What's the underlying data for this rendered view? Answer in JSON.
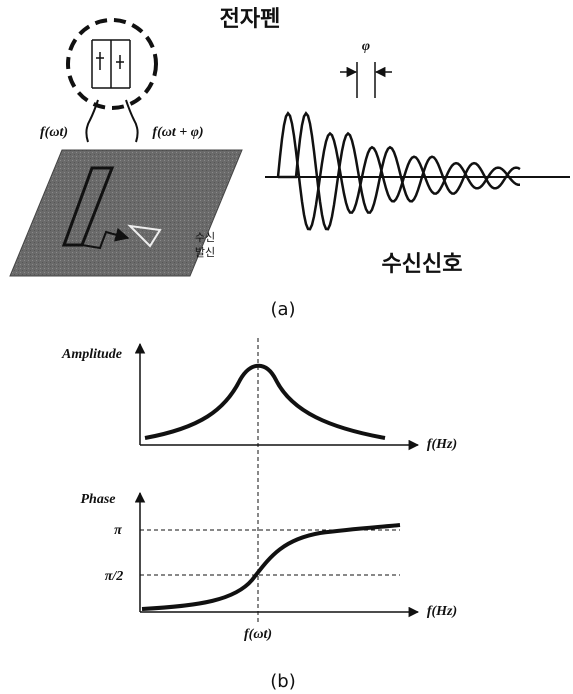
{
  "panel_a": {
    "pen_label": "전자펜",
    "signal_left": "f(ωt)",
    "signal_right": "f(ωt + φ)",
    "phase_symbol": "φ",
    "receive": "수신",
    "transmit": "발신",
    "received_signal": "수신신호",
    "caption": "(a)"
  },
  "panel_b": {
    "amplitude_plot": {
      "y_label": "Amplitude",
      "x_label": "f(Hz)"
    },
    "phase_plot": {
      "y_label": "Phase",
      "x_label": "f(Hz)",
      "tick_top": "π",
      "tick_mid": "π/2",
      "center_label": "f(ωt)"
    },
    "caption": "(b)"
  }
}
